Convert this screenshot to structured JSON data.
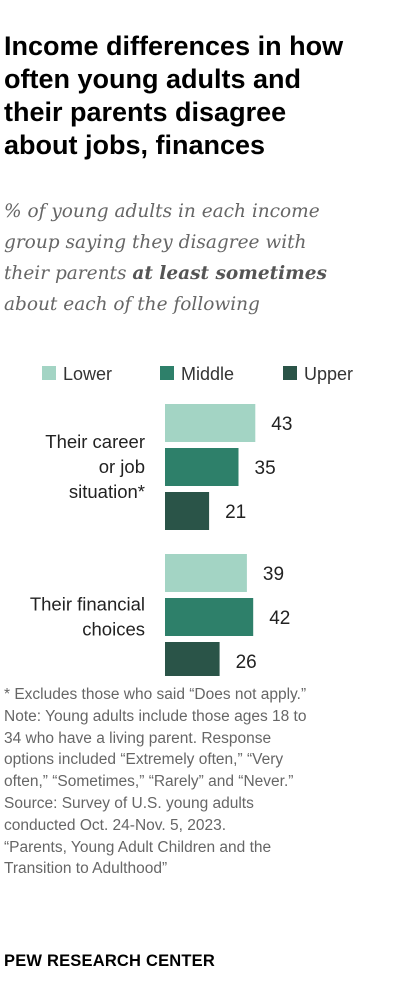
{
  "header": {
    "title_lines": [
      "Income differences in how",
      "often young adults and",
      "their parents disagree",
      "about jobs, finances"
    ],
    "subtitle_line1": "% of young adults in each income",
    "subtitle_line2": "group saying they disagree with",
    "subtitle_line3_pre": "their parents ",
    "subtitle_line3_bold": "at least sometimes",
    "subtitle_line4": "about each of the following"
  },
  "chart_data": {
    "type": "bar",
    "orientation": "horizontal",
    "categories": [
      "Their career or job situation*",
      "Their financial choices"
    ],
    "category_label_lines": [
      [
        "Their career",
        "or job",
        "situation*"
      ],
      [
        "Their financial",
        "choices"
      ]
    ],
    "series": [
      {
        "name": "Lower",
        "color": "#a3d4c4",
        "values": [
          43,
          39
        ]
      },
      {
        "name": "Middle",
        "color": "#2e806a",
        "values": [
          35,
          42
        ]
      },
      {
        "name": "Upper",
        "color": "#2a5448",
        "values": [
          21,
          26
        ]
      }
    ],
    "xlim": [
      0,
      100
    ],
    "legend": "top",
    "grid": false,
    "data_labels": true
  },
  "notes": [
    "* Excludes those who said “Does not apply.”",
    "Note: Young adults include those ages 18 to",
    "34 who have a living parent. Response",
    "options included “Extremely often,” “Very",
    "often,” “Sometimes,” “Rarely” and “Never.”",
    "Source: Survey of U.S. young adults",
    "conducted Oct. 24-Nov. 5, 2023.",
    "“Parents, Young Adult Children and the",
    "Transition to Adulthood”"
  ],
  "source_label": "PEW RESEARCH CENTER"
}
